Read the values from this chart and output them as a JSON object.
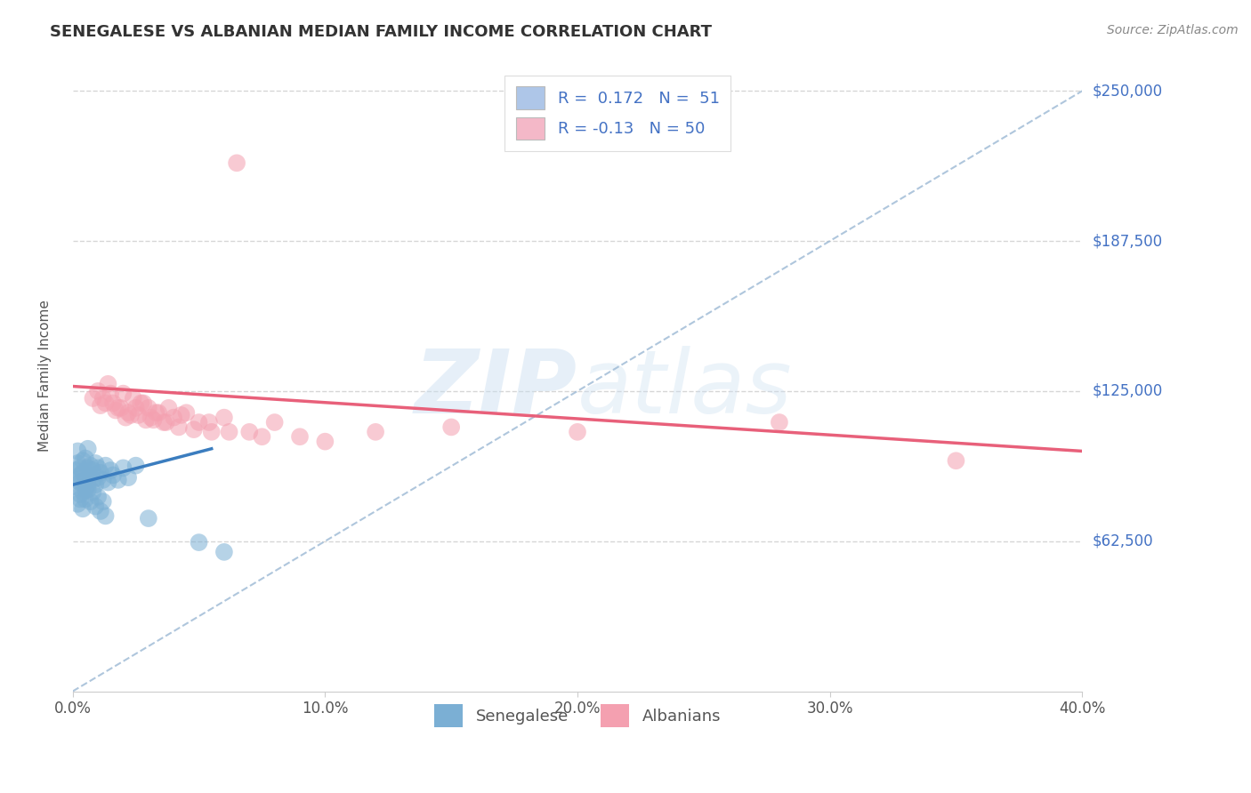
{
  "title": "SENEGALESE VS ALBANIAN MEDIAN FAMILY INCOME CORRELATION CHART",
  "source_text": "Source: ZipAtlas.com",
  "ylabel": "Median Family Income",
  "xlim": [
    0.0,
    0.4
  ],
  "ylim": [
    0,
    262500
  ],
  "xtick_labels": [
    "0.0%",
    "10.0%",
    "20.0%",
    "30.0%",
    "40.0%"
  ],
  "xtick_values": [
    0.0,
    0.1,
    0.2,
    0.3,
    0.4
  ],
  "ytick_labels": [
    "$62,500",
    "$125,000",
    "$187,500",
    "$250,000"
  ],
  "ytick_values": [
    62500,
    125000,
    187500,
    250000
  ],
  "blue_scatter_color": "#7BAFD4",
  "pink_scatter_color": "#F4A0B0",
  "trend_blue": "#3B7DBF",
  "trend_pink": "#E8607A",
  "dashed_line_color": "#9BB8D4",
  "r_blue": 0.172,
  "n_blue": 51,
  "r_pink": -0.13,
  "n_pink": 50,
  "legend_label_blue": "Senegalese",
  "legend_label_pink": "Albanians",
  "legend_box_color_blue": "#AEC6E8",
  "legend_box_color_pink": "#F4B8C8",
  "watermark_zip": "ZIP",
  "watermark_atlas": "atlas",
  "title_fontsize": 13,
  "source_fontsize": 10,
  "background_color": "#FFFFFF",
  "blue_x": [
    0.001,
    0.001,
    0.002,
    0.002,
    0.002,
    0.003,
    0.003,
    0.003,
    0.003,
    0.004,
    0.004,
    0.004,
    0.005,
    0.005,
    0.005,
    0.006,
    0.006,
    0.006,
    0.007,
    0.007,
    0.008,
    0.008,
    0.009,
    0.009,
    0.01,
    0.01,
    0.011,
    0.012,
    0.013,
    0.014,
    0.015,
    0.016,
    0.018,
    0.02,
    0.022,
    0.025,
    0.002,
    0.003,
    0.004,
    0.005,
    0.006,
    0.007,
    0.008,
    0.009,
    0.01,
    0.011,
    0.012,
    0.013,
    0.03,
    0.05,
    0.06
  ],
  "blue_y": [
    88000,
    92000,
    95000,
    100000,
    85000,
    90000,
    87000,
    93000,
    80000,
    96000,
    83000,
    91000,
    88000,
    84000,
    97000,
    93000,
    86000,
    101000,
    90000,
    94000,
    88000,
    92000,
    86000,
    95000,
    89000,
    93000,
    91000,
    88000,
    94000,
    87000,
    92000,
    90000,
    88000,
    93000,
    89000,
    94000,
    78000,
    82000,
    76000,
    80000,
    84000,
    79000,
    83000,
    77000,
    81000,
    75000,
    79000,
    73000,
    72000,
    62000,
    58000
  ],
  "pink_x": [
    0.01,
    0.012,
    0.014,
    0.016,
    0.018,
    0.02,
    0.022,
    0.024,
    0.026,
    0.028,
    0.03,
    0.032,
    0.034,
    0.036,
    0.038,
    0.04,
    0.042,
    0.045,
    0.05,
    0.055,
    0.06,
    0.07,
    0.08,
    0.09,
    0.12,
    0.15,
    0.013,
    0.017,
    0.021,
    0.025,
    0.029,
    0.033,
    0.037,
    0.043,
    0.048,
    0.054,
    0.062,
    0.075,
    0.1,
    0.008,
    0.011,
    0.015,
    0.019,
    0.023,
    0.027,
    0.031,
    0.2,
    0.28,
    0.35,
    0.065
  ],
  "pink_y": [
    125000,
    122000,
    128000,
    120000,
    118000,
    124000,
    116000,
    122000,
    115000,
    120000,
    118000,
    113000,
    116000,
    112000,
    118000,
    114000,
    110000,
    116000,
    112000,
    108000,
    114000,
    108000,
    112000,
    106000,
    108000,
    110000,
    120000,
    117000,
    114000,
    118000,
    113000,
    116000,
    112000,
    115000,
    109000,
    112000,
    108000,
    106000,
    104000,
    122000,
    119000,
    124000,
    118000,
    115000,
    120000,
    114000,
    108000,
    112000,
    96000,
    220000
  ]
}
